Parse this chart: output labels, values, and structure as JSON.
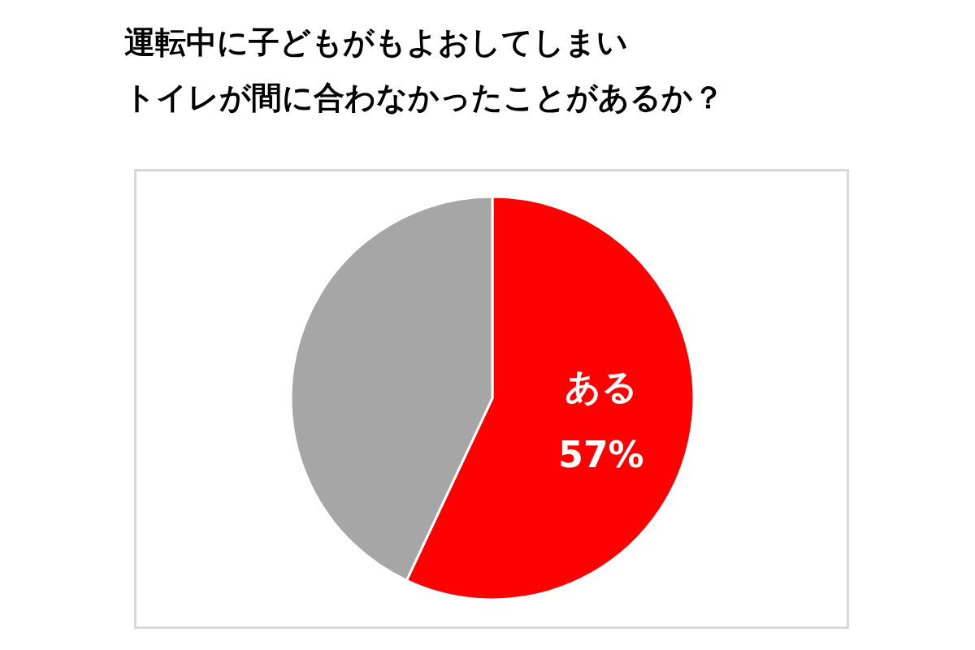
{
  "chart_data": {
    "type": "pie",
    "title": "運転中に子どもがもよおしてしまい",
    "subtitle": "トイレが間に合わなかったことがあるか？",
    "categories": [
      "ある",
      null
    ],
    "values": [
      57,
      43
    ],
    "value_labels": [
      "57%",
      null
    ],
    "colors": [
      "#ff0000",
      "#a6a6a6"
    ],
    "legend": false
  }
}
